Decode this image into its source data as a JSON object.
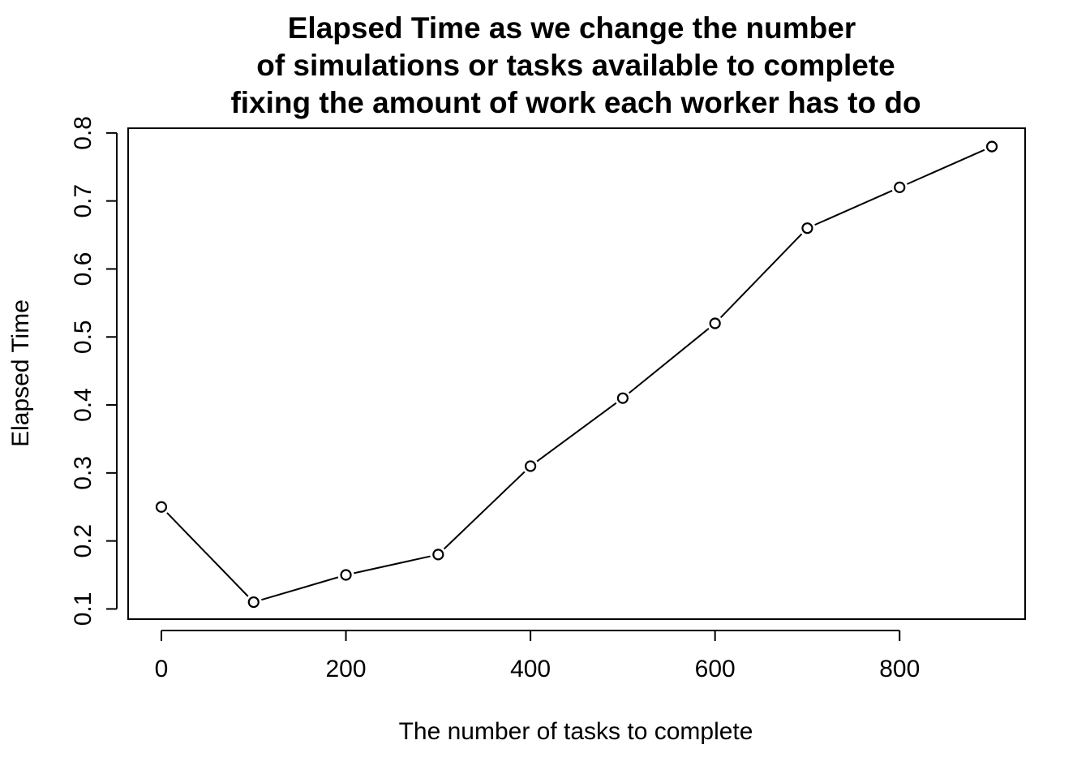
{
  "chart_data": {
    "type": "line",
    "title_lines": [
      "Elapsed Time as we change the number",
      "of simulations or tasks available to complete",
      "fixing the amount of work each worker has to do"
    ],
    "xlabel": "The number of tasks to complete",
    "ylabel": "Elapsed Time",
    "x": [
      0,
      100,
      200,
      300,
      400,
      500,
      600,
      700,
      800,
      900
    ],
    "series": [
      {
        "values": [
          0.25,
          0.11,
          0.15,
          0.18,
          0.31,
          0.41,
          0.52,
          0.66,
          0.72,
          0.78
        ]
      }
    ],
    "x_ticks": [
      "0",
      "200",
      "400",
      "600",
      "800"
    ],
    "y_ticks": [
      "0.1",
      "0.2",
      "0.3",
      "0.4",
      "0.5",
      "0.6",
      "0.7",
      "0.8"
    ],
    "xlim": [
      -36,
      936
    ],
    "ylim": [
      0.085,
      0.807
    ],
    "marker": "open-circle",
    "line_style": "solid-with-gaps",
    "colors": {
      "line": "#000000",
      "marker_fill": "#ffffff",
      "marker_stroke": "#000000",
      "background": "#ffffff"
    },
    "grid": false,
    "legend": "none"
  }
}
